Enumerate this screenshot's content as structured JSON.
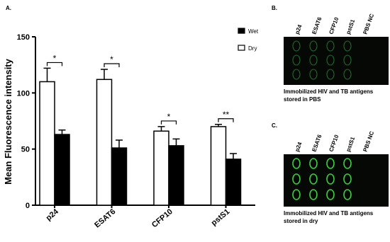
{
  "chart_data": {
    "type": "bar",
    "panel_label": "A.",
    "y_label": "Mean Fluorescence intensity",
    "categories": [
      "p24",
      "ESAT6",
      "CFP10",
      "pstS1"
    ],
    "series": [
      {
        "name": "Dry",
        "color": "#ffffff",
        "values": [
          110,
          112,
          66,
          70
        ],
        "errors": [
          12,
          9,
          4,
          2
        ]
      },
      {
        "name": "Wet",
        "color": "#000000",
        "values": [
          63,
          51,
          53,
          41
        ],
        "errors": [
          4,
          7,
          6,
          5
        ]
      }
    ],
    "annotations": [
      "*",
      "*",
      "*",
      "**"
    ],
    "ylim": [
      0,
      150
    ],
    "yticks": [
      0,
      50,
      100,
      150
    ],
    "grid": false
  },
  "panels": [
    {
      "label": "B.",
      "columns": [
        "p24",
        "ESAT6",
        "CFP10",
        "pstS1",
        "PBS NC"
      ],
      "caption": [
        "Immobilized HIV and TB antigens",
        "stored in PBS"
      ]
    },
    {
      "label": "C.",
      "columns": [
        "p24",
        "ESAT6",
        "CFP10",
        "pstS1",
        "PBS NC"
      ],
      "caption": [
        "Immobilized HIV and TB antigens",
        "stored in dry"
      ]
    }
  ]
}
